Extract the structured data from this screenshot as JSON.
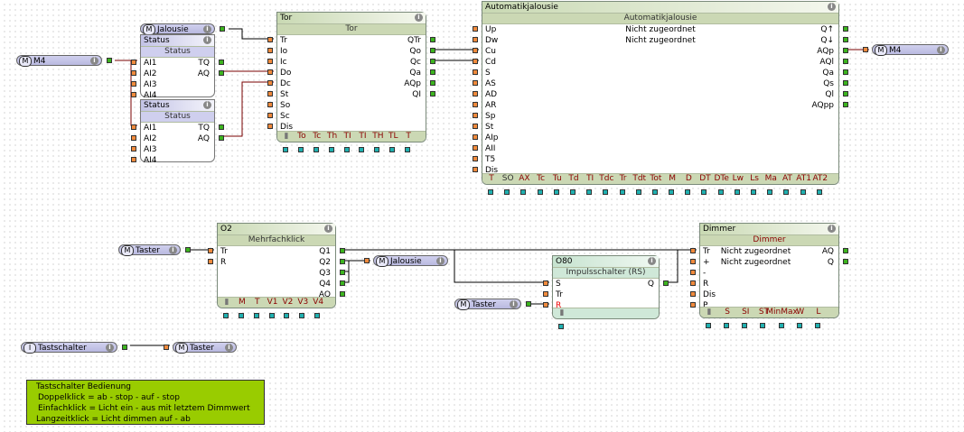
{
  "colors": {
    "input_connector": "#f08a3c",
    "output_connector": "#3cb41e",
    "parameter_connector": "#1fb0b0",
    "comment_bg": "#99cc00",
    "param_label": "#8b0000"
  },
  "refs": [
    {
      "id": "ref-m4-in",
      "type": "M",
      "label": "M4"
    },
    {
      "id": "ref-jalousie-top",
      "type": "M",
      "label": "Jalousie"
    },
    {
      "id": "ref-m4-out",
      "type": "M",
      "label": "M4"
    },
    {
      "id": "ref-taster-1",
      "type": "M",
      "label": "Taster"
    },
    {
      "id": "ref-jalousie-bottom",
      "type": "M",
      "label": "Jalousie"
    },
    {
      "id": "ref-taster-2",
      "type": "M",
      "label": "Taster"
    },
    {
      "id": "ref-tastschalter",
      "type": "I",
      "label": "Tastschalter"
    },
    {
      "id": "ref-taster-3",
      "type": "M",
      "label": "Taster"
    }
  ],
  "blocks": [
    {
      "id": "status-1",
      "cls": "status",
      "title": "Status",
      "subtitle": "Status",
      "inputs": [
        "AI1",
        "AI2",
        "AI3",
        "AI4"
      ],
      "outputs": [
        "TQ",
        "AQ"
      ],
      "params": []
    },
    {
      "id": "status-2",
      "cls": "status",
      "title": "Status",
      "subtitle": "Status",
      "inputs": [
        "AI1",
        "AI2",
        "AI3",
        "AI4"
      ],
      "outputs": [
        "TQ",
        "AQ"
      ],
      "params": []
    },
    {
      "id": "tor",
      "cls": "",
      "title": "Tor",
      "subtitle": "Tor",
      "inputs": [
        "Tr",
        "Io",
        "Ic",
        "Do",
        "Dc",
        "St",
        "So",
        "Sc",
        "Dis"
      ],
      "outputs": [
        "QTr",
        "Qo",
        "Qc",
        "Qa",
        "AQp",
        "QI"
      ],
      "params": [
        "To",
        "Tc",
        "Th",
        "TI",
        "TI",
        "TH",
        "TL",
        "T"
      ],
      "lock": true
    },
    {
      "id": "automatikjalousie",
      "cls": "",
      "title": "Automatikjalousie",
      "subtitle": "Automatikjalousie",
      "inputs": [
        "Up",
        "Dw",
        "Cu",
        "Cd",
        "S",
        "AS",
        "AD",
        "AR",
        "Sp",
        "St",
        "AIp",
        "AII",
        "T5",
        "Dis"
      ],
      "outputs": [
        "Q↑",
        "Q↓",
        "AQp",
        "AQl",
        "Qa",
        "Qs",
        "Ql",
        "AQpp"
      ],
      "params": [
        "T",
        "SO",
        "AX",
        "Tc",
        "Tu",
        "Td",
        "TI",
        "Tdc",
        "Tr",
        "Tdt",
        "Tot",
        "M",
        "D",
        "DT",
        "DTe",
        "Lw",
        "Ls",
        "Ma",
        "AT",
        "AT1",
        "AT2"
      ],
      "center": [
        "Nicht zugeordnet",
        "Nicht zugeordnet"
      ]
    },
    {
      "id": "mehrfachklick",
      "cls": "",
      "title": "O2",
      "subtitle": "Mehrfachklick",
      "inputs": [
        "Tr",
        "R"
      ],
      "outputs": [
        "Q1",
        "Q2",
        "Q3",
        "Q4",
        "AQ"
      ],
      "params": [
        "M",
        "T",
        "V1",
        "V2",
        "V3",
        "V4"
      ],
      "lock": true
    },
    {
      "id": "impulsschalter",
      "cls": "rs",
      "title": "O80",
      "subtitle": "Impulsschalter (RS)",
      "inputs": [
        "S",
        "Tr",
        "R"
      ],
      "outputs": [
        "Q"
      ],
      "params": [],
      "lock": true
    },
    {
      "id": "dimmer",
      "cls": "",
      "title": "Dimmer",
      "subtitle": "Dimmer",
      "inputs": [
        "Tr",
        "+",
        "-",
        "R",
        "Dis",
        "P"
      ],
      "outputs": [
        "AQ",
        "Q"
      ],
      "params": [
        "S",
        "SI",
        "ST",
        "MinMax",
        "W",
        "L"
      ],
      "center": [
        "Nicht zugeordnet",
        "Nicht zugeordnet"
      ],
      "lock": true
    }
  ],
  "comment": {
    "lines": [
      "Tastschalter Bedienung",
      "Doppelklick = ab - stop - auf - stop",
      "Einfachklick = Licht ein - aus mit letztem Dimmwert",
      "Langzeitklick = Licht dimmen auf - ab"
    ]
  }
}
